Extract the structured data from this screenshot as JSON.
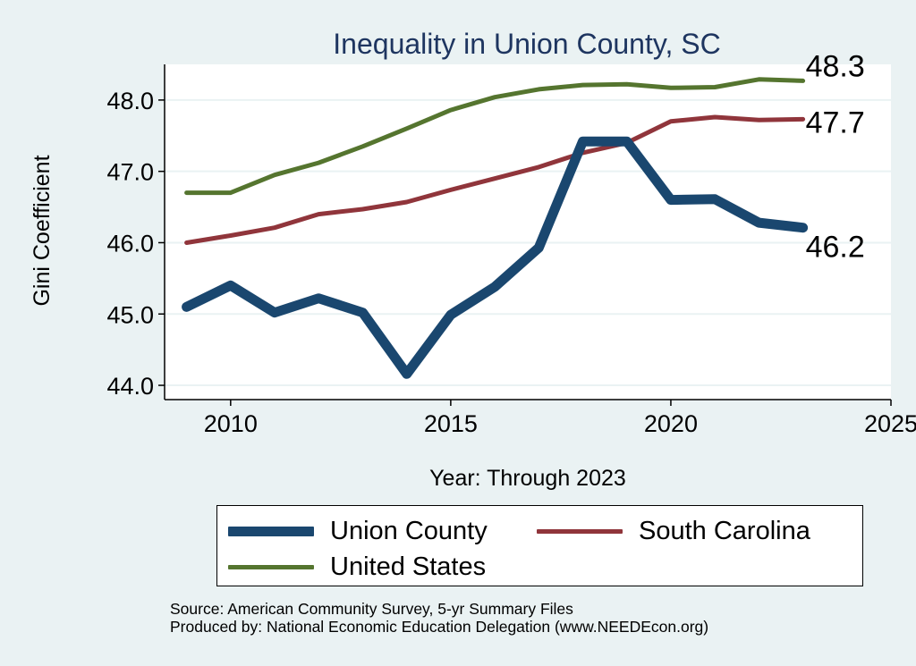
{
  "chart_data": {
    "type": "line",
    "title": "Inequality in Union County, SC",
    "xlabel": "Year: Through 2023",
    "ylabel": "Gini Coefficient",
    "xlim": [
      2008.5,
      2025
    ],
    "ylim": [
      43.8,
      48.5
    ],
    "x_ticks": [
      2010,
      2015,
      2020,
      2025
    ],
    "y_ticks": [
      44.0,
      45.0,
      46.0,
      47.0,
      48.0
    ],
    "y_tick_labels": [
      "44.0",
      "45.0",
      "46.0",
      "47.0",
      "48.0"
    ],
    "grid": true,
    "x": [
      2009,
      2010,
      2011,
      2012,
      2013,
      2014,
      2015,
      2016,
      2017,
      2018,
      2019,
      2020,
      2021,
      2022,
      2023
    ],
    "series": [
      {
        "name": "Union County",
        "color": "#1a476f",
        "width": 11,
        "values": [
          45.1,
          45.4,
          45.02,
          45.22,
          45.02,
          44.16,
          44.99,
          45.38,
          45.93,
          47.42,
          47.42,
          46.6,
          46.61,
          46.28,
          46.21
        ],
        "end_label": "46.2"
      },
      {
        "name": "South Carolina",
        "color": "#90353b",
        "width": 5,
        "values": [
          46.0,
          46.1,
          46.21,
          46.4,
          46.47,
          46.57,
          46.74,
          46.9,
          47.06,
          47.26,
          47.4,
          47.7,
          47.76,
          47.72,
          47.73
        ],
        "end_label": "47.7"
      },
      {
        "name": "United States",
        "color": "#55752f",
        "width": 5,
        "values": [
          46.7,
          46.7,
          46.95,
          47.12,
          47.35,
          47.6,
          47.86,
          48.04,
          48.15,
          48.21,
          48.22,
          48.17,
          48.18,
          48.29,
          48.27
        ],
        "end_label": "48.3"
      }
    ],
    "legend": {
      "position": "bottom",
      "items": [
        "Union County",
        "South Carolina",
        "United States"
      ]
    },
    "source_lines": [
      "Source: American Community Survey, 5-yr Summary Files",
      "Produced by: National Economic Education Delegation (www.NEEDEcon.org)"
    ]
  }
}
